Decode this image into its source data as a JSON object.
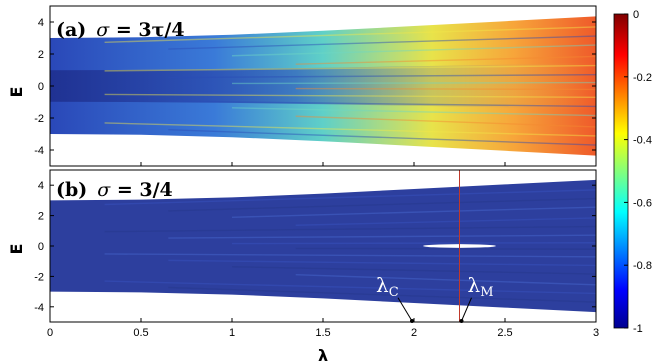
{
  "chart_data": [
    {
      "type": "heatmap",
      "panel_label": "(a)",
      "title_symbol": "σ",
      "title_value": " = 3τ/4",
      "xlabel": "λ",
      "ylabel": "E",
      "xlim": [
        0,
        3
      ],
      "ylim": [
        -5,
        5
      ],
      "xticks": [
        "0",
        "0.5",
        "1",
        "1.5",
        "2",
        "2.5",
        "3"
      ],
      "yticks": [
        "4",
        "2",
        "0",
        "-2",
        "-4"
      ],
      "band_edge_lower": [
        [
          0,
          -3.0
        ],
        [
          0.5,
          -3.05
        ],
        [
          1,
          -3.2
        ],
        [
          1.5,
          -3.45
        ],
        [
          2,
          -3.75
        ],
        [
          2.5,
          -4.05
        ],
        [
          3,
          -4.35
        ]
      ],
      "band_edge_upper": [
        [
          0,
          3.0
        ],
        [
          0.5,
          3.05
        ],
        [
          1,
          3.2
        ],
        [
          1.5,
          3.45
        ],
        [
          2,
          3.75
        ],
        [
          2.5,
          4.05
        ],
        [
          3,
          4.35
        ]
      ],
      "value_trend": [
        [
          0,
          -0.85
        ],
        [
          1,
          -0.7
        ],
        [
          1.5,
          -0.5
        ],
        [
          2,
          -0.35
        ],
        [
          2.5,
          -0.25
        ],
        [
          3,
          -0.15
        ]
      ],
      "grid": false
    },
    {
      "type": "heatmap",
      "panel_label": "(b)",
      "title_symbol": "σ",
      "title_value": " = 3/4",
      "xlabel": "λ",
      "ylabel": "E",
      "xlim": [
        0,
        3
      ],
      "ylim": [
        -5,
        5
      ],
      "xticks": [
        "0",
        "0.5",
        "1",
        "1.5",
        "2",
        "2.5",
        "3"
      ],
      "yticks": [
        "4",
        "2",
        "0",
        "-2",
        "-4"
      ],
      "band_edge_lower": [
        [
          0,
          -3.0
        ],
        [
          0.5,
          -3.05
        ],
        [
          1,
          -3.2
        ],
        [
          1.5,
          -3.45
        ],
        [
          2,
          -3.75
        ],
        [
          2.5,
          -4.05
        ],
        [
          3,
          -4.35
        ]
      ],
      "band_edge_upper": [
        [
          0,
          3.0
        ],
        [
          0.5,
          3.05
        ],
        [
          1,
          3.2
        ],
        [
          1.5,
          3.45
        ],
        [
          2,
          3.75
        ],
        [
          2.5,
          4.05
        ],
        [
          3,
          4.35
        ]
      ],
      "value_trend": [
        [
          0,
          -0.85
        ],
        [
          3,
          -0.85
        ]
      ],
      "gap": {
        "lambda_start": 2.05,
        "lambda_end": 2.45,
        "E_half_width": 0.12
      },
      "marker_line_lambda": 2.25,
      "annotations": [
        {
          "symbol": "λ",
          "subscript": "C",
          "lambda": 2.0
        },
        {
          "symbol": "λ",
          "subscript": "M",
          "lambda": 2.25
        }
      ],
      "grid": false
    }
  ],
  "colorbar": {
    "min": -1,
    "max": 0,
    "ticks": [
      "0",
      "-0.2",
      "-0.4",
      "-0.6",
      "-0.8",
      "-1"
    ],
    "colormap": [
      "#00008f",
      "#0000ff",
      "#00ffff",
      "#ffff00",
      "#ff0000",
      "#800000"
    ]
  },
  "colors": {
    "deep_blue": "#2d3f9e",
    "marker_line": "#c0392b",
    "annotation_text": "#ffffff"
  }
}
